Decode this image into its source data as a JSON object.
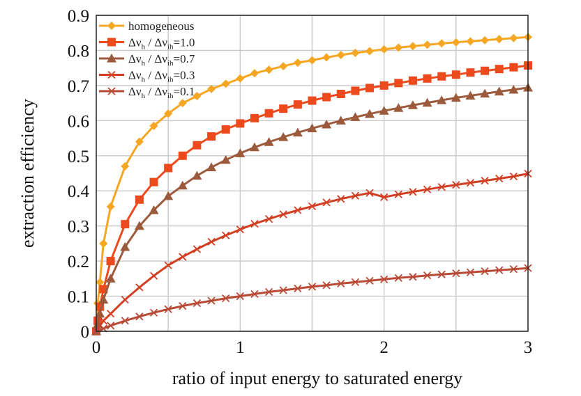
{
  "chart_data": {
    "type": "line",
    "title": "",
    "xlabel": "ratio of input energy to saturated energy",
    "ylabel": "extraction efficiency",
    "xlim": [
      0,
      3
    ],
    "ylim": [
      0,
      0.9
    ],
    "xticks": [
      "0",
      "1",
      "2",
      "3"
    ],
    "yticks": [
      "0",
      "0.1",
      "0.2",
      "0.3",
      "0.4",
      "0.5",
      "0.6",
      "0.7",
      "0.8",
      "0.9"
    ],
    "grid": true,
    "legend_position": "top-left",
    "series": [
      {
        "name": "homogeneous",
        "legend_parts": [
          "homogeneous"
        ],
        "color": "#f5a623",
        "marker": "diamond",
        "points": [
          [
            0,
            0
          ],
          [
            0.01,
            0.08
          ],
          [
            0.025,
            0.14
          ],
          [
            0.05,
            0.25
          ],
          [
            0.1,
            0.355
          ],
          [
            0.2,
            0.47
          ],
          [
            0.3,
            0.54
          ],
          [
            0.4,
            0.585
          ],
          [
            0.5,
            0.62
          ],
          [
            0.6,
            0.65
          ],
          [
            0.7,
            0.67
          ],
          [
            0.8,
            0.69
          ],
          [
            0.9,
            0.705
          ],
          [
            1.0,
            0.72
          ],
          [
            1.1,
            0.735
          ],
          [
            1.2,
            0.745
          ],
          [
            1.3,
            0.755
          ],
          [
            1.4,
            0.765
          ],
          [
            1.5,
            0.772
          ],
          [
            1.6,
            0.78
          ],
          [
            1.7,
            0.787
          ],
          [
            1.8,
            0.793
          ],
          [
            1.9,
            0.798
          ],
          [
            2.0,
            0.803
          ],
          [
            2.1,
            0.808
          ],
          [
            2.2,
            0.812
          ],
          [
            2.3,
            0.816
          ],
          [
            2.4,
            0.82
          ],
          [
            2.5,
            0.823
          ],
          [
            2.6,
            0.826
          ],
          [
            2.7,
            0.829
          ],
          [
            2.8,
            0.832
          ],
          [
            2.9,
            0.835
          ],
          [
            3.0,
            0.838
          ]
        ]
      },
      {
        "name": "Δνh / Δνih=1.0",
        "legend_parts": [
          "Δν",
          "h",
          " / Δν",
          "ih",
          "=1.0"
        ],
        "color": "#ec4a1c",
        "marker": "square",
        "points": [
          [
            0,
            0
          ],
          [
            0.01,
            0.03
          ],
          [
            0.025,
            0.07
          ],
          [
            0.05,
            0.12
          ],
          [
            0.1,
            0.2
          ],
          [
            0.2,
            0.305
          ],
          [
            0.3,
            0.375
          ],
          [
            0.4,
            0.425
          ],
          [
            0.5,
            0.465
          ],
          [
            0.6,
            0.5
          ],
          [
            0.7,
            0.53
          ],
          [
            0.8,
            0.555
          ],
          [
            0.9,
            0.575
          ],
          [
            1.0,
            0.592
          ],
          [
            1.1,
            0.607
          ],
          [
            1.2,
            0.621
          ],
          [
            1.3,
            0.634
          ],
          [
            1.4,
            0.646
          ],
          [
            1.5,
            0.657
          ],
          [
            1.6,
            0.667
          ],
          [
            1.7,
            0.676
          ],
          [
            1.8,
            0.685
          ],
          [
            1.9,
            0.693
          ],
          [
            2.0,
            0.7
          ],
          [
            2.1,
            0.707
          ],
          [
            2.2,
            0.714
          ],
          [
            2.3,
            0.72
          ],
          [
            2.4,
            0.726
          ],
          [
            2.5,
            0.731
          ],
          [
            2.6,
            0.737
          ],
          [
            2.7,
            0.742
          ],
          [
            2.8,
            0.747
          ],
          [
            2.9,
            0.752
          ],
          [
            3.0,
            0.757
          ]
        ]
      },
      {
        "name": "Δνh / Δνih=0.7",
        "legend_parts": [
          "Δν",
          "h",
          " / Δν",
          "ih",
          "=0.7"
        ],
        "color": "#9c5a3c",
        "marker": "triangle",
        "points": [
          [
            0,
            0
          ],
          [
            0.01,
            0.02
          ],
          [
            0.025,
            0.05
          ],
          [
            0.05,
            0.09
          ],
          [
            0.1,
            0.15
          ],
          [
            0.2,
            0.24
          ],
          [
            0.3,
            0.3
          ],
          [
            0.4,
            0.345
          ],
          [
            0.5,
            0.385
          ],
          [
            0.6,
            0.415
          ],
          [
            0.7,
            0.443
          ],
          [
            0.8,
            0.467
          ],
          [
            0.9,
            0.488
          ],
          [
            1.0,
            0.507
          ],
          [
            1.1,
            0.524
          ],
          [
            1.2,
            0.539
          ],
          [
            1.3,
            0.553
          ],
          [
            1.4,
            0.566
          ],
          [
            1.5,
            0.578
          ],
          [
            1.6,
            0.589
          ],
          [
            1.7,
            0.6
          ],
          [
            1.8,
            0.61
          ],
          [
            1.9,
            0.619
          ],
          [
            2.0,
            0.628
          ],
          [
            2.1,
            0.636
          ],
          [
            2.2,
            0.644
          ],
          [
            2.3,
            0.651
          ],
          [
            2.4,
            0.658
          ],
          [
            2.5,
            0.665
          ],
          [
            2.6,
            0.671
          ],
          [
            2.7,
            0.677
          ],
          [
            2.8,
            0.683
          ],
          [
            2.9,
            0.688
          ],
          [
            3.0,
            0.694
          ]
        ]
      },
      {
        "name": "Δνh / Δνih=0.3",
        "legend_parts": [
          "Δν",
          "h",
          " / Δν",
          "ih",
          "=0.3"
        ],
        "color": "#d13f23",
        "marker": "x",
        "points": [
          [
            0,
            0
          ],
          [
            0.05,
            0.03
          ],
          [
            0.1,
            0.05
          ],
          [
            0.2,
            0.09
          ],
          [
            0.3,
            0.125
          ],
          [
            0.4,
            0.158
          ],
          [
            0.5,
            0.188
          ],
          [
            0.6,
            0.212
          ],
          [
            0.7,
            0.234
          ],
          [
            0.8,
            0.255
          ],
          [
            0.9,
            0.273
          ],
          [
            1.0,
            0.29
          ],
          [
            1.1,
            0.306
          ],
          [
            1.2,
            0.32
          ],
          [
            1.3,
            0.333
          ],
          [
            1.4,
            0.345
          ],
          [
            1.5,
            0.356
          ],
          [
            1.6,
            0.367
          ],
          [
            1.7,
            0.377
          ],
          [
            1.8,
            0.386
          ],
          [
            1.9,
            0.394
          ],
          [
            2.0,
            0.382
          ],
          [
            2.1,
            0.39
          ],
          [
            2.2,
            0.397
          ],
          [
            2.3,
            0.404
          ],
          [
            2.4,
            0.411
          ],
          [
            2.5,
            0.417
          ],
          [
            2.6,
            0.423
          ],
          [
            2.7,
            0.429
          ],
          [
            2.8,
            0.435
          ],
          [
            2.9,
            0.441
          ],
          [
            3.0,
            0.449
          ]
        ]
      },
      {
        "name": "Δνh / Δνih=0.1",
        "legend_parts": [
          "Δν",
          "h",
          " / Δν",
          "ih",
          "=0.1"
        ],
        "color": "#b94a36",
        "marker": "x",
        "points": [
          [
            0,
            0
          ],
          [
            0.05,
            0.008
          ],
          [
            0.1,
            0.016
          ],
          [
            0.2,
            0.03
          ],
          [
            0.3,
            0.042
          ],
          [
            0.4,
            0.053
          ],
          [
            0.5,
            0.063
          ],
          [
            0.6,
            0.072
          ],
          [
            0.7,
            0.08
          ],
          [
            0.8,
            0.087
          ],
          [
            0.9,
            0.094
          ],
          [
            1.0,
            0.1
          ],
          [
            1.1,
            0.106
          ],
          [
            1.2,
            0.112
          ],
          [
            1.3,
            0.117
          ],
          [
            1.4,
            0.122
          ],
          [
            1.5,
            0.127
          ],
          [
            1.6,
            0.131
          ],
          [
            1.7,
            0.136
          ],
          [
            1.8,
            0.14
          ],
          [
            1.9,
            0.144
          ],
          [
            2.0,
            0.148
          ],
          [
            2.1,
            0.152
          ],
          [
            2.2,
            0.155
          ],
          [
            2.3,
            0.159
          ],
          [
            2.4,
            0.162
          ],
          [
            2.5,
            0.165
          ],
          [
            2.6,
            0.168
          ],
          [
            2.7,
            0.171
          ],
          [
            2.8,
            0.174
          ],
          [
            2.9,
            0.177
          ],
          [
            3.0,
            0.18
          ]
        ]
      }
    ]
  }
}
